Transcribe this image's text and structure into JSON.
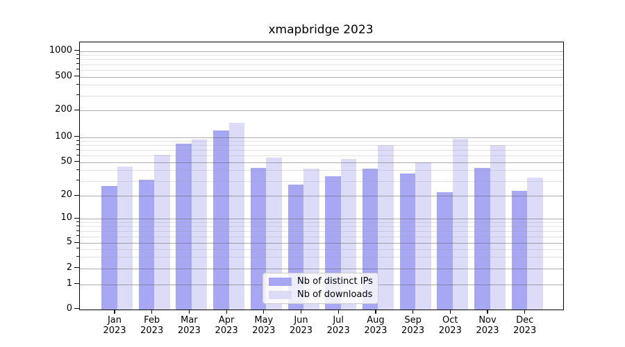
{
  "chart_data": {
    "type": "bar",
    "title": "xmapbridge 2023",
    "categories": [
      "Jan",
      "Feb",
      "Mar",
      "Apr",
      "May",
      "Jun",
      "Jul",
      "Aug",
      "Sep",
      "Oct",
      "Nov",
      "Dec"
    ],
    "year_label": "2023",
    "series": [
      {
        "name": "Nb of distinct IPs",
        "color": "#a7a7f3",
        "values": [
          26,
          31,
          84,
          119,
          43,
          27,
          34,
          42,
          37,
          22,
          43,
          23
        ]
      },
      {
        "name": "Nb of downloads",
        "color": "#dcdcf9",
        "values": [
          44,
          61,
          93,
          144,
          57,
          42,
          55,
          80,
          50,
          95,
          80,
          33
        ]
      }
    ],
    "y_ticks": [
      0,
      1,
      2,
      5,
      10,
      20,
      50,
      100,
      200,
      500,
      1000
    ],
    "yscale": "symlog",
    "ylim": [
      0,
      1260
    ],
    "grid": true,
    "legend_position": "lower center",
    "colors": {
      "major_grid": "#8a8a8a",
      "minor_grid": "#cccccc",
      "axis": "#000000",
      "background": "#ffffff"
    }
  }
}
